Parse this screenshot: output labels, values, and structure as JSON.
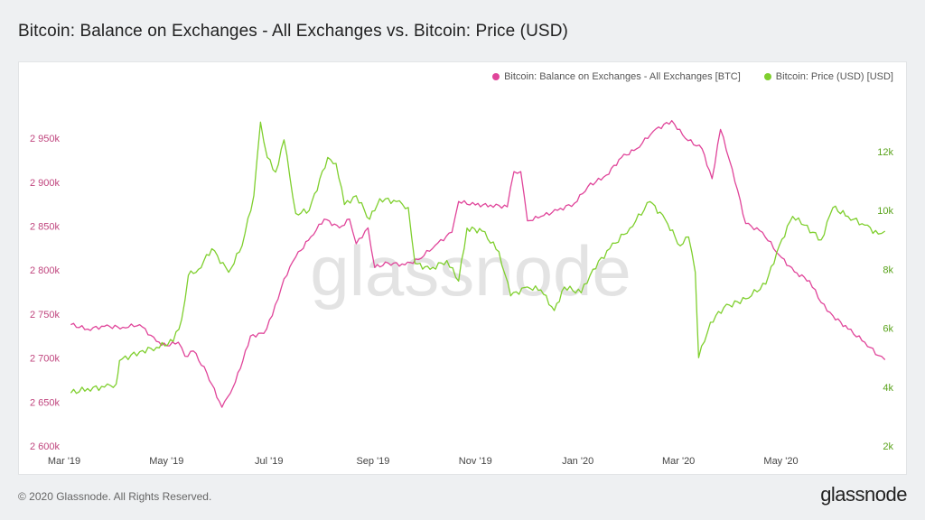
{
  "header": {
    "title": "Bitcoin: Balance on Exchanges - All Exchanges vs. Bitcoin: Price (USD)"
  },
  "footer": {
    "copyright": "© 2020 Glassnode. All Rights Reserved.",
    "logo_text": "glassnode"
  },
  "watermark": "glassnode",
  "colors": {
    "balance": "#e0459a",
    "price": "#7fcf2e",
    "left_axis_text": "#c0457e",
    "right_axis_text": "#5aa31c",
    "x_axis_text": "#444444",
    "watermark": "#e3e3e3"
  },
  "chart_data": {
    "type": "line",
    "title": "Bitcoin: Balance on Exchanges - All Exchanges vs. Bitcoin: Price (USD)",
    "legend_position": "top-right",
    "grid": false,
    "x_ticks": [
      "Mar '19",
      "May '19",
      "Jul '19",
      "Sep '19",
      "Nov '19",
      "Jan '20",
      "Mar '20",
      "May '20"
    ],
    "x_range": [
      "2019-03-01",
      "2020-06-30"
    ],
    "y_left": {
      "ticks": [
        2600000,
        2650000,
        2700000,
        2750000,
        2800000,
        2850000,
        2900000,
        2950000
      ],
      "tick_labels": [
        "2 600k",
        "2 650k",
        "2 700k",
        "2 750k",
        "2 800k",
        "2 850k",
        "2 900k",
        "2 950k"
      ],
      "range": [
        2600000,
        2985000
      ]
    },
    "y_right": {
      "ticks": [
        2000,
        4000,
        6000,
        8000,
        10000,
        12000
      ],
      "tick_labels": [
        "2k",
        "4k",
        "6k",
        "8k",
        "10k",
        "12k"
      ],
      "range": [
        2000,
        13500
      ]
    },
    "series": [
      {
        "name": "Bitcoin: Balance on Exchanges - All Exchanges [BTC]",
        "axis": "left",
        "points": [
          [
            "2019-03-05",
            2738000
          ],
          [
            "2019-03-15",
            2733000
          ],
          [
            "2019-03-25",
            2736000
          ],
          [
            "2019-04-05",
            2735000
          ],
          [
            "2019-04-15",
            2738000
          ],
          [
            "2019-04-25",
            2719000
          ],
          [
            "2019-05-01",
            2714000
          ],
          [
            "2019-05-08",
            2718000
          ],
          [
            "2019-05-12",
            2702000
          ],
          [
            "2019-05-17",
            2708000
          ],
          [
            "2019-05-25",
            2683000
          ],
          [
            "2019-06-03",
            2644000
          ],
          [
            "2019-06-08",
            2660000
          ],
          [
            "2019-06-14",
            2688000
          ],
          [
            "2019-06-20",
            2725000
          ],
          [
            "2019-06-28",
            2728000
          ],
          [
            "2019-07-03",
            2748000
          ],
          [
            "2019-07-10",
            2790000
          ],
          [
            "2019-07-17",
            2815000
          ],
          [
            "2019-07-26",
            2838000
          ],
          [
            "2019-08-03",
            2858000
          ],
          [
            "2019-08-12",
            2848000
          ],
          [
            "2019-08-18",
            2858000
          ],
          [
            "2019-08-22",
            2830000
          ],
          [
            "2019-08-29",
            2848000
          ],
          [
            "2019-09-02",
            2803000
          ],
          [
            "2019-09-10",
            2808000
          ],
          [
            "2019-09-20",
            2806000
          ],
          [
            "2019-09-28",
            2812000
          ],
          [
            "2019-10-08",
            2828000
          ],
          [
            "2019-10-18",
            2843000
          ],
          [
            "2019-10-22",
            2878000
          ],
          [
            "2019-11-01",
            2874000
          ],
          [
            "2019-11-10",
            2874000
          ],
          [
            "2019-11-20",
            2872000
          ],
          [
            "2019-11-24",
            2912000
          ],
          [
            "2019-11-28",
            2912000
          ],
          [
            "2019-12-02",
            2856000
          ],
          [
            "2019-12-10",
            2861000
          ],
          [
            "2019-12-20",
            2868000
          ],
          [
            "2019-12-30",
            2876000
          ],
          [
            "2020-01-07",
            2895000
          ],
          [
            "2020-01-18",
            2908000
          ],
          [
            "2020-01-27",
            2928000
          ],
          [
            "2020-02-05",
            2938000
          ],
          [
            "2020-02-15",
            2958000
          ],
          [
            "2020-02-26",
            2970000
          ],
          [
            "2020-03-05",
            2950000
          ],
          [
            "2020-03-15",
            2938000
          ],
          [
            "2020-03-21",
            2904000
          ],
          [
            "2020-03-26",
            2960000
          ],
          [
            "2020-04-02",
            2915000
          ],
          [
            "2020-04-10",
            2853000
          ],
          [
            "2020-04-20",
            2843000
          ],
          [
            "2020-04-30",
            2817000
          ],
          [
            "2020-05-09",
            2798000
          ],
          [
            "2020-05-18",
            2788000
          ],
          [
            "2020-05-25",
            2763000
          ],
          [
            "2020-06-01",
            2748000
          ],
          [
            "2020-06-10",
            2733000
          ],
          [
            "2020-06-20",
            2718000
          ],
          [
            "2020-06-28",
            2703000
          ],
          [
            "2020-07-02",
            2698000
          ]
        ]
      },
      {
        "name": "Bitcoin: Price (USD) [USD]",
        "axis": "right",
        "points": [
          [
            "2019-03-05",
            3800
          ],
          [
            "2019-03-15",
            3950
          ],
          [
            "2019-03-25",
            4000
          ],
          [
            "2019-04-01",
            4100
          ],
          [
            "2019-04-03",
            4900
          ],
          [
            "2019-04-15",
            5200
          ],
          [
            "2019-04-25",
            5350
          ],
          [
            "2019-05-05",
            5550
          ],
          [
            "2019-05-10",
            6300
          ],
          [
            "2019-05-14",
            7800
          ],
          [
            "2019-05-20",
            8000
          ],
          [
            "2019-05-28",
            8700
          ],
          [
            "2019-06-07",
            7900
          ],
          [
            "2019-06-15",
            8800
          ],
          [
            "2019-06-22",
            10500
          ],
          [
            "2019-06-26",
            13000
          ],
          [
            "2019-06-30",
            11800
          ],
          [
            "2019-07-05",
            11300
          ],
          [
            "2019-07-10",
            12400
          ],
          [
            "2019-07-17",
            9900
          ],
          [
            "2019-07-25",
            10000
          ],
          [
            "2019-08-05",
            11800
          ],
          [
            "2019-08-10",
            11600
          ],
          [
            "2019-08-15",
            10200
          ],
          [
            "2019-08-22",
            10500
          ],
          [
            "2019-08-30",
            9700
          ],
          [
            "2019-09-05",
            10400
          ],
          [
            "2019-09-15",
            10300
          ],
          [
            "2019-09-22",
            10100
          ],
          [
            "2019-09-26",
            8200
          ],
          [
            "2019-10-05",
            8000
          ],
          [
            "2019-10-15",
            8300
          ],
          [
            "2019-10-22",
            7600
          ],
          [
            "2019-10-27",
            9400
          ],
          [
            "2019-11-05",
            9300
          ],
          [
            "2019-11-15",
            8600
          ],
          [
            "2019-11-22",
            7100
          ],
          [
            "2019-12-02",
            7400
          ],
          [
            "2019-12-10",
            7300
          ],
          [
            "2019-12-18",
            6600
          ],
          [
            "2019-12-24",
            7400
          ],
          [
            "2020-01-03",
            7200
          ],
          [
            "2020-01-10",
            8000
          ],
          [
            "2020-01-20",
            8700
          ],
          [
            "2020-02-01",
            9400
          ],
          [
            "2020-02-13",
            10300
          ],
          [
            "2020-02-22",
            9700
          ],
          [
            "2020-03-02",
            8800
          ],
          [
            "2020-03-07",
            9100
          ],
          [
            "2020-03-11",
            7900
          ],
          [
            "2020-03-13",
            5000
          ],
          [
            "2020-03-20",
            6200
          ],
          [
            "2020-03-28",
            6700
          ],
          [
            "2020-04-10",
            7000
          ],
          [
            "2020-04-22",
            7500
          ],
          [
            "2020-04-30",
            8800
          ],
          [
            "2020-05-08",
            9800
          ],
          [
            "2020-05-15",
            9500
          ],
          [
            "2020-05-25",
            9000
          ],
          [
            "2020-06-01",
            10100
          ],
          [
            "2020-06-10",
            9800
          ],
          [
            "2020-06-20",
            9500
          ],
          [
            "2020-06-28",
            9200
          ],
          [
            "2020-07-02",
            9300
          ]
        ]
      }
    ]
  }
}
